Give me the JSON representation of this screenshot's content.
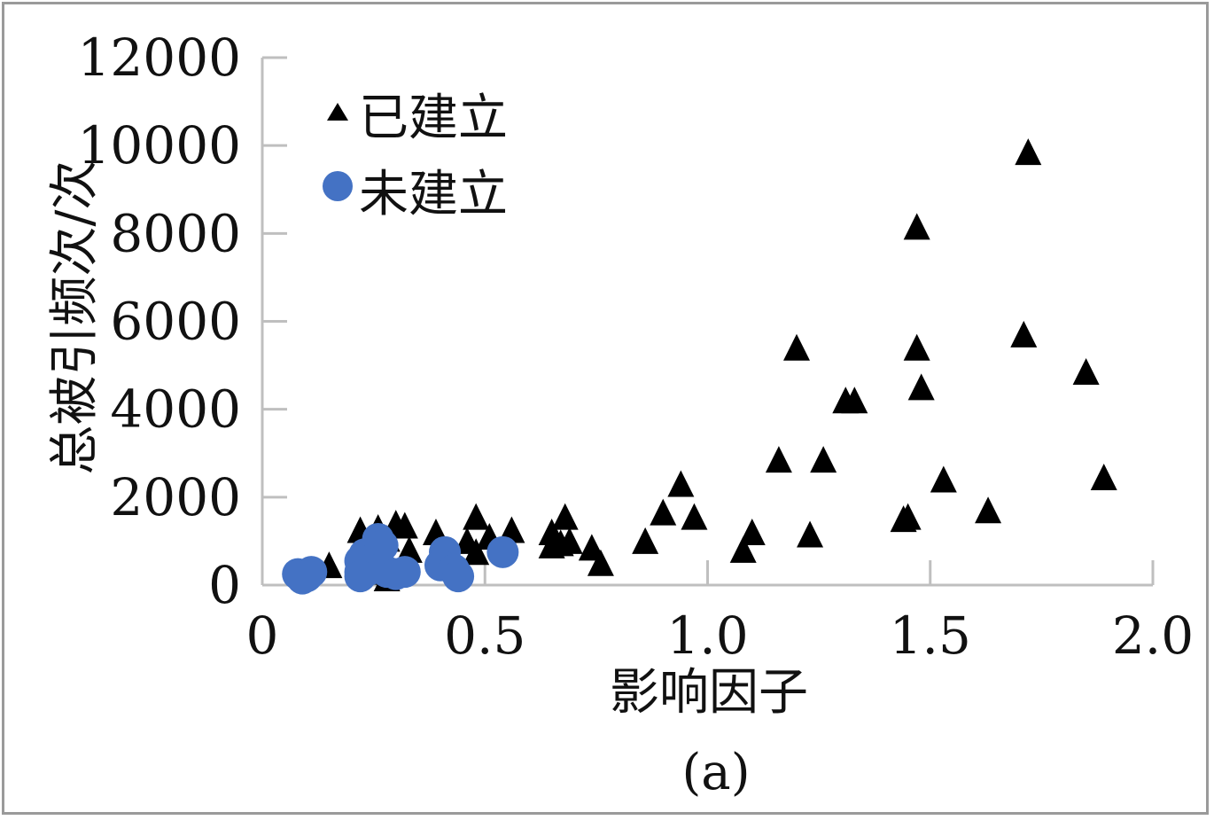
{
  "chart_data": {
    "type": "scatter",
    "xlabel": "影响因子",
    "ylabel": "总被引频次/次",
    "caption": "(a)",
    "xlim": [
      0,
      2.0
    ],
    "ylim": [
      0,
      12000
    ],
    "xticks": [
      "0",
      "0.5",
      "1.0",
      "1.5",
      "2.0"
    ],
    "yticks": [
      "0",
      "2000",
      "4000",
      "6000",
      "8000",
      "10000",
      "12000"
    ],
    "xtick_values": [
      0,
      0.5,
      1.0,
      1.5,
      2.0
    ],
    "ytick_values": [
      0,
      2000,
      4000,
      6000,
      8000,
      10000,
      12000
    ],
    "grid": false,
    "legend_position": "top-left",
    "series": [
      {
        "name": "已建立",
        "marker": "triangle",
        "color": "#000000",
        "points": [
          [
            1.72,
            9800
          ],
          [
            1.47,
            8100
          ],
          [
            1.71,
            5650
          ],
          [
            1.47,
            5350
          ],
          [
            1.2,
            5350
          ],
          [
            1.85,
            4800
          ],
          [
            1.48,
            4450
          ],
          [
            1.31,
            4150
          ],
          [
            1.33,
            4150
          ],
          [
            1.16,
            2800
          ],
          [
            1.26,
            2800
          ],
          [
            0.94,
            2250
          ],
          [
            1.53,
            2350
          ],
          [
            1.89,
            2400
          ],
          [
            0.9,
            1600
          ],
          [
            0.97,
            1500
          ],
          [
            1.63,
            1650
          ],
          [
            1.44,
            1450
          ],
          [
            1.45,
            1500
          ],
          [
            1.1,
            1150
          ],
          [
            1.23,
            1100
          ],
          [
            0.86,
            950
          ],
          [
            1.08,
            750
          ],
          [
            0.68,
            1500
          ],
          [
            0.65,
            1150
          ],
          [
            0.67,
            900
          ],
          [
            0.65,
            850
          ],
          [
            0.69,
            950
          ],
          [
            0.74,
            800
          ],
          [
            0.76,
            450
          ],
          [
            0.56,
            1200
          ],
          [
            0.48,
            1500
          ],
          [
            0.51,
            1050
          ],
          [
            0.46,
            950
          ],
          [
            0.48,
            700
          ],
          [
            0.39,
            1150
          ],
          [
            0.32,
            1300
          ],
          [
            0.3,
            1350
          ],
          [
            0.33,
            750
          ],
          [
            0.28,
            1000
          ],
          [
            0.22,
            1200
          ],
          [
            0.26,
            1250
          ],
          [
            0.15,
            400
          ],
          [
            0.27,
            250
          ],
          [
            0.28,
            100
          ]
        ]
      },
      {
        "name": "未建立",
        "marker": "circle",
        "color": "#4472c4",
        "points": [
          [
            0.08,
            250
          ],
          [
            0.1,
            200
          ],
          [
            0.11,
            300
          ],
          [
            0.09,
            150
          ],
          [
            0.22,
            300
          ],
          [
            0.24,
            500
          ],
          [
            0.23,
            700
          ],
          [
            0.25,
            800
          ],
          [
            0.26,
            1050
          ],
          [
            0.27,
            900
          ],
          [
            0.22,
            550
          ],
          [
            0.24,
            350
          ],
          [
            0.28,
            300
          ],
          [
            0.3,
            250
          ],
          [
            0.32,
            300
          ],
          [
            0.22,
            200
          ],
          [
            0.41,
            750
          ],
          [
            0.4,
            450
          ],
          [
            0.43,
            350
          ],
          [
            0.44,
            200
          ],
          [
            0.54,
            750
          ]
        ]
      }
    ]
  }
}
